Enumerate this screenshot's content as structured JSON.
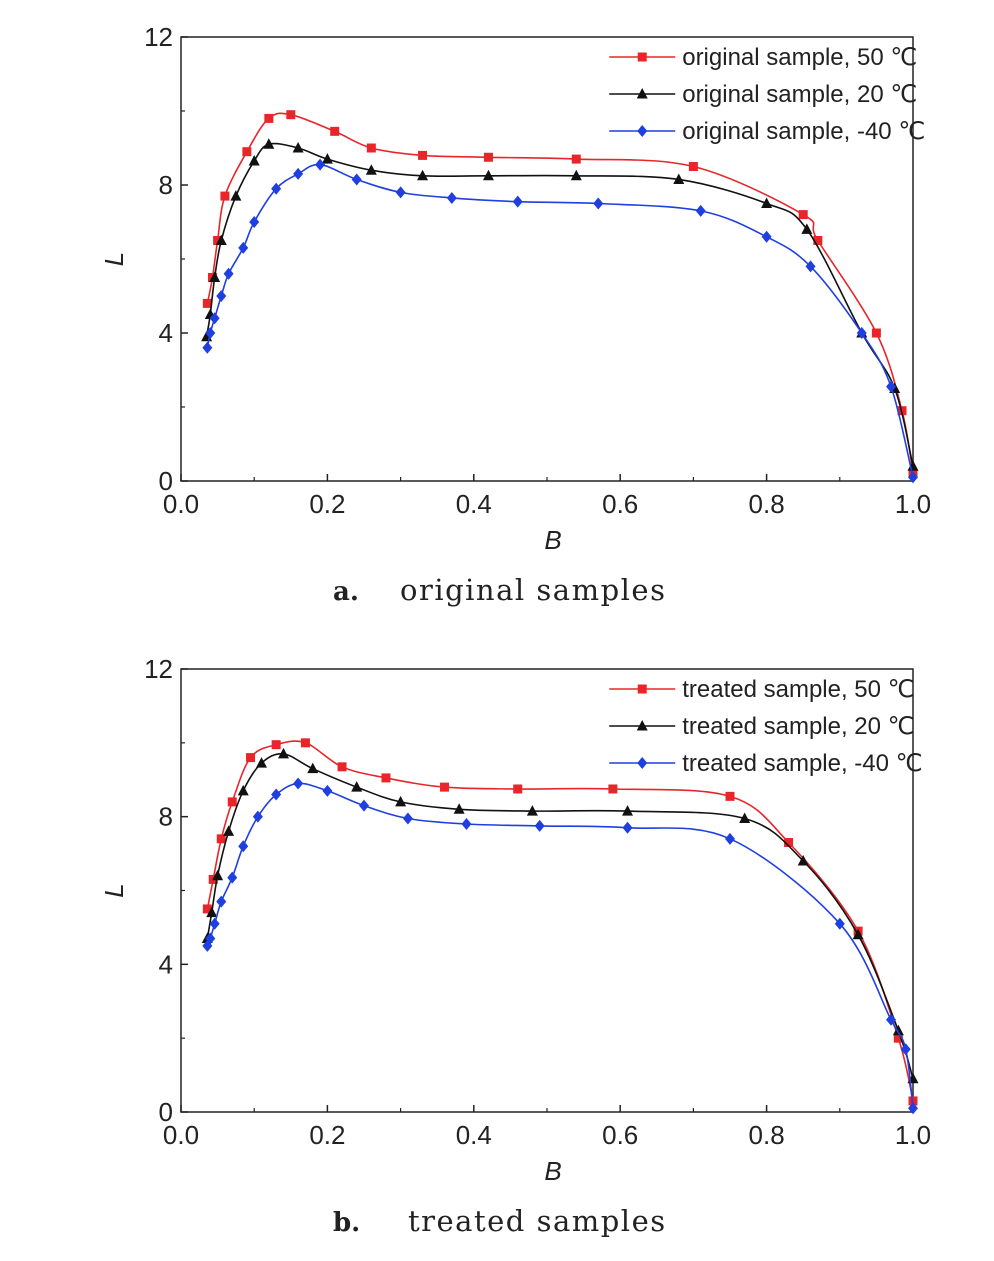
{
  "chart_data": [
    {
      "type": "line",
      "caption_letter": "a.",
      "caption": "original samples",
      "xlabel": "B",
      "ylabel": "L",
      "xlim": [
        0.0,
        1.0
      ],
      "ylim": [
        0,
        12
      ],
      "x_ticks": [
        "0.0",
        "0.2",
        "0.4",
        "0.6",
        "0.8",
        "1.0"
      ],
      "y_ticks": [
        "0",
        "4",
        "8",
        "12"
      ],
      "legend_position": "top-right",
      "grid": false,
      "series": [
        {
          "name": "original sample, 50 ℃",
          "color": "#e8262a",
          "marker": "square",
          "points": [
            [
              0.036,
              4.8
            ],
            [
              0.043,
              5.5
            ],
            [
              0.05,
              6.5
            ],
            [
              0.06,
              7.7
            ],
            [
              0.09,
              8.9
            ],
            [
              0.12,
              9.8
            ],
            [
              0.15,
              9.9
            ],
            [
              0.21,
              9.45
            ],
            [
              0.26,
              9.0
            ],
            [
              0.33,
              8.8
            ],
            [
              0.42,
              8.75
            ],
            [
              0.54,
              8.7
            ],
            [
              0.7,
              8.5
            ],
            [
              0.85,
              7.2
            ],
            [
              0.87,
              6.5
            ],
            [
              0.95,
              4.0
            ],
            [
              0.985,
              1.9
            ],
            [
              1.0,
              0.2
            ]
          ]
        },
        {
          "name": "original sample, 20 ℃",
          "color": "#111111",
          "marker": "triangle",
          "points": [
            [
              0.035,
              3.9
            ],
            [
              0.04,
              4.5
            ],
            [
              0.046,
              5.5
            ],
            [
              0.055,
              6.5
            ],
            [
              0.075,
              7.7
            ],
            [
              0.1,
              8.65
            ],
            [
              0.12,
              9.1
            ],
            [
              0.16,
              9.0
            ],
            [
              0.2,
              8.7
            ],
            [
              0.26,
              8.4
            ],
            [
              0.33,
              8.25
            ],
            [
              0.42,
              8.25
            ],
            [
              0.54,
              8.25
            ],
            [
              0.68,
              8.15
            ],
            [
              0.8,
              7.5
            ],
            [
              0.855,
              6.8
            ],
            [
              0.93,
              4.0
            ],
            [
              0.975,
              2.5
            ],
            [
              1.0,
              0.4
            ]
          ]
        },
        {
          "name": "original sample, -40 ℃",
          "color": "#1f3fe0",
          "marker": "diamond",
          "points": [
            [
              0.036,
              3.6
            ],
            [
              0.04,
              4.0
            ],
            [
              0.046,
              4.4
            ],
            [
              0.055,
              5.0
            ],
            [
              0.065,
              5.6
            ],
            [
              0.085,
              6.3
            ],
            [
              0.1,
              7.0
            ],
            [
              0.13,
              7.9
            ],
            [
              0.16,
              8.3
            ],
            [
              0.19,
              8.55
            ],
            [
              0.24,
              8.15
            ],
            [
              0.3,
              7.8
            ],
            [
              0.37,
              7.65
            ],
            [
              0.46,
              7.55
            ],
            [
              0.57,
              7.5
            ],
            [
              0.71,
              7.3
            ],
            [
              0.8,
              6.6
            ],
            [
              0.86,
              5.8
            ],
            [
              0.93,
              4.0
            ],
            [
              0.97,
              2.55
            ],
            [
              1.0,
              0.1
            ]
          ]
        }
      ]
    },
    {
      "type": "line",
      "caption_letter": "b.",
      "caption": "treated samples",
      "xlabel": "B",
      "ylabel": "L",
      "xlim": [
        0.0,
        1.0
      ],
      "ylim": [
        0,
        12
      ],
      "x_ticks": [
        "0.0",
        "0.2",
        "0.4",
        "0.6",
        "0.8",
        "1.0"
      ],
      "y_ticks": [
        "0",
        "4",
        "8",
        "12"
      ],
      "legend_position": "top-right",
      "grid": false,
      "series": [
        {
          "name": "treated sample, 50 ℃",
          "color": "#e8262a",
          "marker": "square",
          "points": [
            [
              0.036,
              5.5
            ],
            [
              0.044,
              6.3
            ],
            [
              0.055,
              7.4
            ],
            [
              0.07,
              8.4
            ],
            [
              0.095,
              9.6
            ],
            [
              0.13,
              9.95
            ],
            [
              0.17,
              10.0
            ],
            [
              0.22,
              9.35
            ],
            [
              0.28,
              9.05
            ],
            [
              0.36,
              8.8
            ],
            [
              0.46,
              8.75
            ],
            [
              0.59,
              8.75
            ],
            [
              0.75,
              8.55
            ],
            [
              0.83,
              7.3
            ],
            [
              0.925,
              4.9
            ],
            [
              0.98,
              2.0
            ],
            [
              1.0,
              0.3
            ]
          ]
        },
        {
          "name": "treated sample, 20 ℃",
          "color": "#111111",
          "marker": "triangle",
          "points": [
            [
              0.036,
              4.7
            ],
            [
              0.042,
              5.4
            ],
            [
              0.05,
              6.4
            ],
            [
              0.065,
              7.6
            ],
            [
              0.085,
              8.7
            ],
            [
              0.11,
              9.45
            ],
            [
              0.14,
              9.7
            ],
            [
              0.18,
              9.3
            ],
            [
              0.24,
              8.8
            ],
            [
              0.3,
              8.4
            ],
            [
              0.38,
              8.2
            ],
            [
              0.48,
              8.15
            ],
            [
              0.61,
              8.15
            ],
            [
              0.77,
              7.95
            ],
            [
              0.85,
              6.8
            ],
            [
              0.925,
              4.8
            ],
            [
              0.98,
              2.2
            ],
            [
              1.0,
              0.9
            ]
          ]
        },
        {
          "name": "treated sample, -40 ℃",
          "color": "#1f3fe0",
          "marker": "diamond",
          "points": [
            [
              0.036,
              4.5
            ],
            [
              0.04,
              4.7
            ],
            [
              0.046,
              5.1
            ],
            [
              0.055,
              5.7
            ],
            [
              0.07,
              6.35
            ],
            [
              0.085,
              7.2
            ],
            [
              0.105,
              8.0
            ],
            [
              0.13,
              8.6
            ],
            [
              0.16,
              8.9
            ],
            [
              0.2,
              8.7
            ],
            [
              0.25,
              8.3
            ],
            [
              0.31,
              7.95
            ],
            [
              0.39,
              7.8
            ],
            [
              0.49,
              7.75
            ],
            [
              0.61,
              7.7
            ],
            [
              0.75,
              7.4
            ],
            [
              0.9,
              5.1
            ],
            [
              0.97,
              2.5
            ],
            [
              0.99,
              1.7
            ],
            [
              1.0,
              0.1
            ]
          ]
        }
      ]
    }
  ]
}
